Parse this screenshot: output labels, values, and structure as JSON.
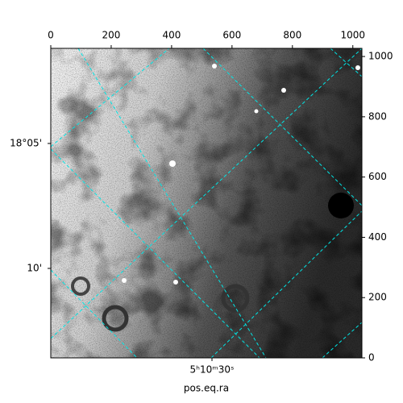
{
  "chart_data": {
    "type": "image",
    "xlabel": "pos.eq.ra",
    "xlim": [
      0,
      1030
    ],
    "xticks": [
      0,
      200,
      400,
      600,
      800,
      1000
    ],
    "ylim": [
      0,
      1027
    ],
    "yticks": [
      0,
      200,
      400,
      600,
      800,
      1000
    ],
    "dec_tick_labels": [
      "18°05'",
      "10'"
    ],
    "ra_tick_labels": [
      "5ʰ10ᵐ30ˢ"
    ]
  }
}
